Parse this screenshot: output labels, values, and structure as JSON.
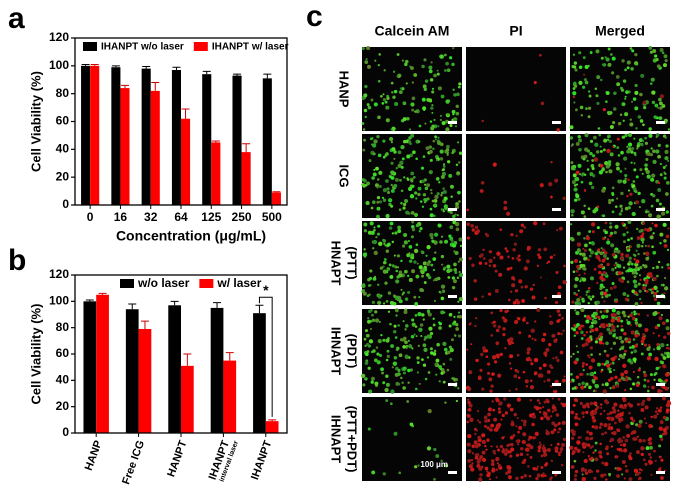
{
  "chart_data": [
    {
      "type": "bar",
      "panel": "a",
      "categories": [
        "0",
        "16",
        "32",
        "64",
        "125",
        "250",
        "500"
      ],
      "series": [
        {
          "name": "IHANPT w/o laser",
          "color": "#000000",
          "values": [
            100,
            99,
            98,
            97,
            94,
            93,
            91
          ],
          "errors": [
            1,
            1,
            1.5,
            2,
            2,
            1,
            3
          ]
        },
        {
          "name": "IHANPT w/ laser",
          "color": "#ff0000",
          "values": [
            100,
            84,
            82,
            62,
            45,
            38,
            9
          ],
          "errors": [
            1,
            2,
            6,
            7,
            1,
            6,
            0.5
          ]
        }
      ],
      "ylabel": "Cell Viability (%)",
      "xlabel": "Concentration (μg/mL)",
      "ylim": [
        0,
        120
      ],
      "yticks": [
        0,
        20,
        40,
        60,
        80,
        100,
        120
      ],
      "legend": "top"
    },
    {
      "type": "bar",
      "panel": "b",
      "categories": [
        "HANP",
        "Free ICG",
        "HANPT",
        "IHANPT",
        "IHANPT"
      ],
      "category_sublabels": [
        null,
        null,
        null,
        "interval laser",
        null
      ],
      "series": [
        {
          "name": "w/o laser",
          "color": "#000000",
          "values": [
            100,
            94,
            97,
            95,
            91
          ],
          "errors": [
            1,
            4,
            3,
            4,
            6
          ]
        },
        {
          "name": "w/ laser",
          "color": "#ff0000",
          "values": [
            105,
            79,
            51,
            55,
            9
          ],
          "errors": [
            1,
            6,
            9,
            6,
            1
          ]
        }
      ],
      "ylabel": "Cell Viability (%)",
      "ylim": [
        0,
        120
      ],
      "yticks": [
        0,
        20,
        40,
        60,
        80,
        100,
        120
      ],
      "legend": "top",
      "annotation": "*"
    }
  ],
  "images": {
    "panel": "c",
    "columns": [
      "Calcein AM",
      "PI",
      "Merged"
    ],
    "rows": [
      [
        "HANP"
      ],
      [
        "ICG"
      ],
      [
        "HNAPT",
        "(PTT)"
      ],
      [
        "IHNAPT",
        "(PDT)"
      ],
      [
        "IHNAPT",
        "(PTT+PDT)"
      ]
    ],
    "scale_bar": "100 μm"
  }
}
